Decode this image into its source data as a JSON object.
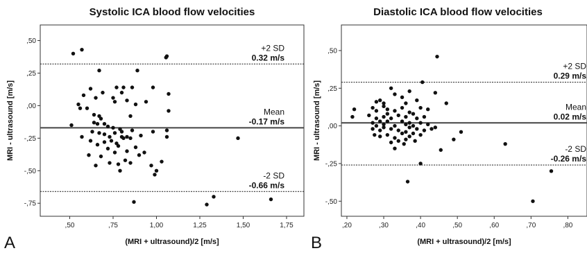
{
  "chart_data": [
    {
      "type": "scatter",
      "panel_label": "A",
      "title": "Systolic ICA blood flow velocities",
      "xlabel": "(MRI + ultrasound)/2  [m/s]",
      "ylabel": "MRI - ultrasound [m/s]",
      "xlim": [
        0.33,
        1.85
      ],
      "ylim": [
        -0.85,
        0.62
      ],
      "xticks": [
        0.5,
        0.75,
        1.0,
        1.25,
        1.5,
        1.75
      ],
      "xtick_labels": [
        ",50",
        ",75",
        "1,00",
        "1,25",
        "1,50",
        "1,75"
      ],
      "yticks": [
        0.5,
        0.25,
        0.0,
        -0.25,
        -0.5,
        -0.75
      ],
      "ytick_labels": [
        ",50",
        ",25",
        ",00",
        "-,25",
        "-,50",
        "-,75"
      ],
      "lines": [
        {
          "name": "+2 SD",
          "value": 0.32,
          "label": "0.32 m/s",
          "style": "dotted"
        },
        {
          "name": "Mean",
          "value": -0.17,
          "label": "-0.17 m/s",
          "style": "solid"
        },
        {
          "name": "-2 SD",
          "value": -0.66,
          "label": "-0.66 m/s",
          "style": "dotted"
        }
      ],
      "points": [
        [
          0.52,
          0.4
        ],
        [
          0.57,
          0.43
        ],
        [
          1.06,
          0.38
        ],
        [
          1.055,
          0.37
        ],
        [
          0.67,
          0.27
        ],
        [
          0.89,
          0.27
        ],
        [
          0.62,
          0.13
        ],
        [
          0.69,
          0.1
        ],
        [
          0.77,
          0.14
        ],
        [
          0.8,
          0.1
        ],
        [
          0.81,
          0.14
        ],
        [
          0.86,
          0.14
        ],
        [
          0.98,
          0.14
        ],
        [
          1.07,
          0.09
        ],
        [
          0.58,
          0.08
        ],
        [
          0.65,
          0.06
        ],
        [
          0.75,
          0.06
        ],
        [
          0.83,
          0.04
        ],
        [
          0.88,
          0.01
        ],
        [
          0.94,
          0.03
        ],
        [
          0.55,
          0.01
        ],
        [
          0.56,
          -0.02
        ],
        [
          0.6,
          -0.02
        ],
        [
          0.64,
          -0.07
        ],
        [
          0.76,
          0.03
        ],
        [
          1.07,
          -0.04
        ],
        [
          0.67,
          -0.08
        ],
        [
          0.68,
          -0.1
        ],
        [
          0.85,
          -0.08
        ],
        [
          0.51,
          -0.15
        ],
        [
          0.64,
          -0.13
        ],
        [
          0.66,
          -0.14
        ],
        [
          0.7,
          -0.14
        ],
        [
          0.72,
          -0.16
        ],
        [
          0.75,
          -0.17
        ],
        [
          0.79,
          -0.18
        ],
        [
          0.63,
          -0.2
        ],
        [
          0.67,
          -0.21
        ],
        [
          0.7,
          -0.22
        ],
        [
          0.73,
          -0.24
        ],
        [
          0.76,
          -0.21
        ],
        [
          0.8,
          -0.2
        ],
        [
          0.86,
          -0.19
        ],
        [
          0.98,
          -0.2
        ],
        [
          1.06,
          -0.19
        ],
        [
          0.57,
          -0.24
        ],
        [
          0.62,
          -0.27
        ],
        [
          0.66,
          -0.3
        ],
        [
          0.7,
          -0.28
        ],
        [
          0.74,
          -0.27
        ],
        [
          0.77,
          -0.29
        ],
        [
          0.8,
          -0.24
        ],
        [
          0.81,
          -0.25
        ],
        [
          0.83,
          -0.24
        ],
        [
          0.85,
          -0.25
        ],
        [
          0.91,
          -0.23
        ],
        [
          1.06,
          -0.24
        ],
        [
          0.72,
          -0.33
        ],
        [
          0.76,
          -0.36
        ],
        [
          0.78,
          -0.31
        ],
        [
          0.83,
          -0.35
        ],
        [
          0.88,
          -0.32
        ],
        [
          0.61,
          -0.38
        ],
        [
          0.68,
          -0.39
        ],
        [
          0.73,
          -0.44
        ],
        [
          0.78,
          -0.45
        ],
        [
          0.82,
          -0.42
        ],
        [
          0.85,
          -0.44
        ],
        [
          0.9,
          -0.38
        ],
        [
          0.93,
          -0.36
        ],
        [
          0.65,
          -0.46
        ],
        [
          0.79,
          -0.5
        ],
        [
          0.99,
          -0.53
        ],
        [
          1.0,
          -0.5
        ],
        [
          1.03,
          -0.43
        ],
        [
          0.97,
          -0.46
        ],
        [
          1.47,
          -0.25
        ],
        [
          0.87,
          -0.74
        ],
        [
          1.29,
          -0.76
        ],
        [
          1.33,
          -0.7
        ],
        [
          1.66,
          -0.72
        ]
      ]
    },
    {
      "type": "scatter",
      "panel_label": "B",
      "title": "Diastolic ICA blood flow velocities",
      "xlabel": "(MRI + ultrasound)/2  [m/s]",
      "ylabel": "MRI - ultrasound [m/s]",
      "xlim": [
        0.185,
        0.852
      ],
      "ylim": [
        -0.6,
        0.67
      ],
      "xticks": [
        0.2,
        0.3,
        0.4,
        0.5,
        0.6,
        0.7,
        0.8
      ],
      "xtick_labels": [
        ",20",
        ",30",
        ",40",
        ",50",
        ",60",
        ",70",
        ",80"
      ],
      "yticks": [
        0.5,
        0.25,
        0.0,
        -0.25,
        -0.5
      ],
      "ytick_labels": [
        ",50",
        ",25",
        ",00",
        "-,25",
        "-,50"
      ],
      "lines": [
        {
          "name": "+2 SD",
          "value": 0.29,
          "label": "0.29 m/s",
          "style": "dotted"
        },
        {
          "name": "Mean",
          "value": 0.02,
          "label": "0.02 m/s",
          "style": "solid"
        },
        {
          "name": "-2 SD",
          "value": -0.26,
          "label": "-0.26 m/s",
          "style": "dotted"
        }
      ],
      "points": [
        [
          0.445,
          0.46
        ],
        [
          0.405,
          0.29
        ],
        [
          0.44,
          0.22
        ],
        [
          0.32,
          0.25
        ],
        [
          0.33,
          0.21
        ],
        [
          0.35,
          0.19
        ],
        [
          0.37,
          0.23
        ],
        [
          0.28,
          0.16
        ],
        [
          0.29,
          0.17
        ],
        [
          0.3,
          0.15
        ],
        [
          0.36,
          0.15
        ],
        [
          0.39,
          0.17
        ],
        [
          0.47,
          0.15
        ],
        [
          0.22,
          0.11
        ],
        [
          0.27,
          0.12
        ],
        [
          0.28,
          0.1
        ],
        [
          0.3,
          0.13
        ],
        [
          0.31,
          0.11
        ],
        [
          0.33,
          0.1
        ],
        [
          0.35,
          0.12
        ],
        [
          0.37,
          0.09
        ],
        [
          0.4,
          0.12
        ],
        [
          0.42,
          0.11
        ],
        [
          0.215,
          0.06
        ],
        [
          0.26,
          0.07
        ],
        [
          0.28,
          0.05
        ],
        [
          0.3,
          0.06
        ],
        [
          0.31,
          0.08
        ],
        [
          0.32,
          0.05
        ],
        [
          0.34,
          0.07
        ],
        [
          0.36,
          0.06
        ],
        [
          0.38,
          0.08
        ],
        [
          0.39,
          0.05
        ],
        [
          0.41,
          0.06
        ],
        [
          0.27,
          0.02
        ],
        [
          0.28,
          0.0
        ],
        [
          0.29,
          0.03
        ],
        [
          0.3,
          0.01
        ],
        [
          0.31,
          0.03
        ],
        [
          0.33,
          0.0
        ],
        [
          0.35,
          0.03
        ],
        [
          0.36,
          0.01
        ],
        [
          0.37,
          0.02
        ],
        [
          0.38,
          0.0
        ],
        [
          0.4,
          0.02
        ],
        [
          0.42,
          0.01
        ],
        [
          0.27,
          -0.02
        ],
        [
          0.29,
          -0.03
        ],
        [
          0.3,
          -0.01
        ],
        [
          0.32,
          -0.02
        ],
        [
          0.34,
          -0.03
        ],
        [
          0.36,
          -0.04
        ],
        [
          0.37,
          -0.01
        ],
        [
          0.39,
          -0.02
        ],
        [
          0.41,
          -0.03
        ],
        [
          0.43,
          -0.02
        ],
        [
          0.44,
          -0.01
        ],
        [
          0.275,
          -0.06
        ],
        [
          0.29,
          -0.07
        ],
        [
          0.31,
          -0.06
        ],
        [
          0.33,
          -0.08
        ],
        [
          0.35,
          -0.05
        ],
        [
          0.37,
          -0.07
        ],
        [
          0.38,
          -0.05
        ],
        [
          0.4,
          -0.06
        ],
        [
          0.34,
          -0.1
        ],
        [
          0.36,
          -0.09
        ],
        [
          0.32,
          -0.11
        ],
        [
          0.33,
          -0.15
        ],
        [
          0.355,
          -0.12
        ],
        [
          0.385,
          -0.1
        ],
        [
          0.455,
          -0.16
        ],
        [
          0.51,
          -0.04
        ],
        [
          0.49,
          -0.09
        ],
        [
          0.63,
          -0.12
        ],
        [
          0.4,
          -0.25
        ],
        [
          0.365,
          -0.37
        ],
        [
          0.755,
          -0.3
        ],
        [
          0.705,
          -0.5
        ]
      ]
    }
  ]
}
